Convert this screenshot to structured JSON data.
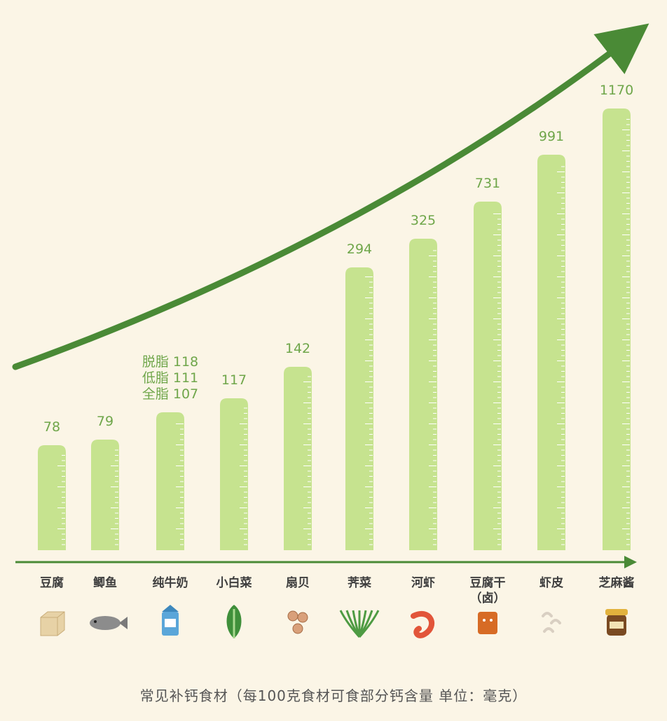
{
  "chart_data": {
    "type": "bar",
    "categories": [
      "豆腐",
      "鲫鱼",
      "纯牛奶",
      "小白菜",
      "扇贝",
      "荠菜",
      "河虾",
      "豆腐干（卤）",
      "虾皮",
      "芝麻酱"
    ],
    "category_lines": [
      [
        "豆腐"
      ],
      [
        "鲫鱼"
      ],
      [
        "纯牛奶"
      ],
      [
        "小白菜"
      ],
      [
        "扇贝"
      ],
      [
        "荠菜"
      ],
      [
        "河虾"
      ],
      [
        "豆腐干",
        "（卤）"
      ],
      [
        "虾皮"
      ],
      [
        "芝麻酱"
      ]
    ],
    "values": [
      78,
      79,
      107,
      117,
      142,
      294,
      325,
      731,
      991,
      1170
    ],
    "value_labels": [
      [
        "78"
      ],
      [
        "79"
      ],
      [
        "脱脂 118",
        "低脂 111",
        "全脂 107"
      ],
      [
        "117"
      ],
      [
        "142"
      ],
      [
        "294"
      ],
      [
        "325"
      ],
      [
        "731"
      ],
      [
        "991"
      ],
      [
        "1170"
      ]
    ],
    "icons": [
      "tofu-icon",
      "crucian-carp-icon",
      "milk-carton-icon",
      "bok-choy-icon",
      "scallop-icon",
      "shepherds-purse-icon",
      "shrimp-icon",
      "dried-tofu-icon",
      "dried-shrimp-icon",
      "sesame-paste-jar-icon"
    ],
    "caption": "常见补钙食材（每100克食材可食部分钙含量    单位：毫克）",
    "colors": {
      "bar": "#c6e38f",
      "bar_tick": "#ffffff",
      "label": "#6fa64a",
      "arrow": "#4a8a36",
      "axis": "#4a8a36"
    }
  }
}
